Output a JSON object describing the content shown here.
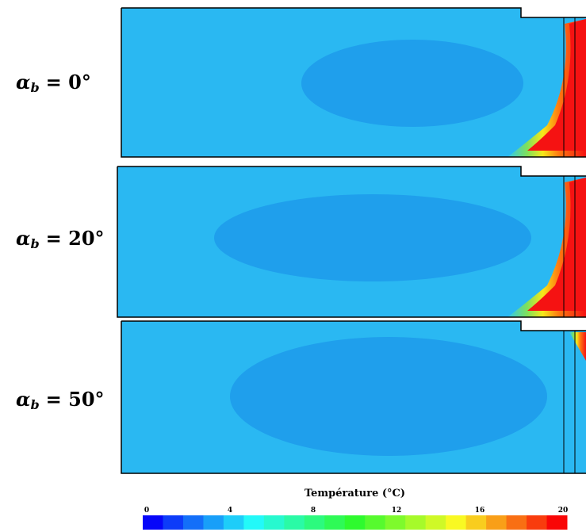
{
  "panels": [
    {
      "label": {
        "symbol": "α",
        "subscript": "b",
        "value": "= 0°"
      }
    },
    {
      "label": {
        "symbol": "α",
        "subscript": "b",
        "value": "= 20°"
      }
    },
    {
      "label": {
        "symbol": "α",
        "subscript": "b",
        "value": "= 50°"
      }
    }
  ],
  "colorbar": {
    "title": "Température (°C)",
    "range": [
      0,
      20
    ],
    "ticks": [
      0,
      4,
      8,
      12,
      16,
      20
    ]
  }
}
